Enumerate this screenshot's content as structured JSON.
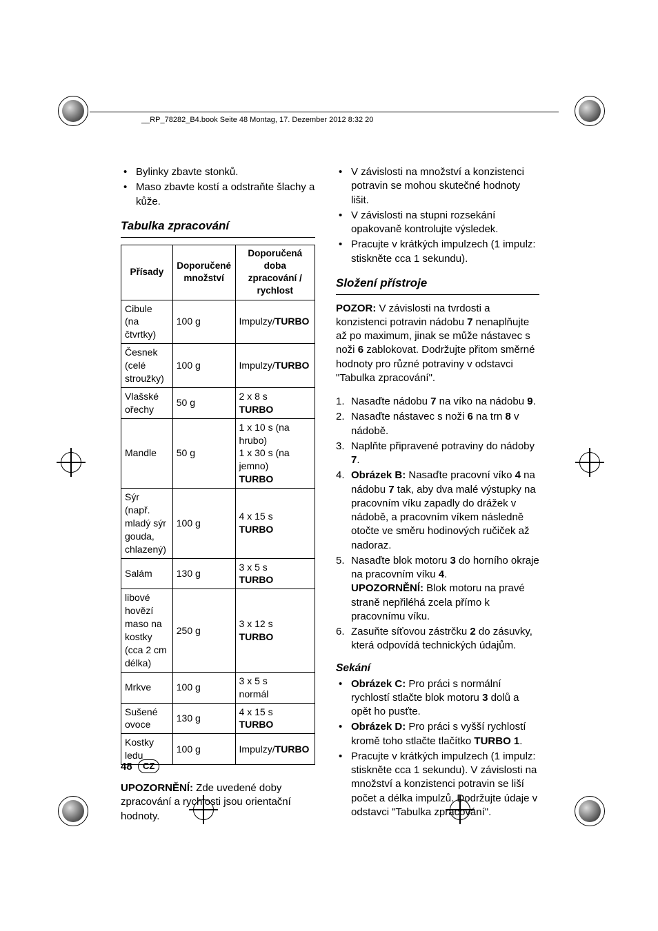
{
  "pageHeader": "__RP_78282_B4.book  Seite 48  Montag, 17. Dezember 2012  8:32 20",
  "left": {
    "bullets_top": [
      "Bylinky zbavte stonků.",
      "Maso zbavte kostí a odstraňte šlachy a kůže."
    ],
    "section_title": "Tabulka zpracování",
    "table": {
      "headers": [
        "Přísady",
        "Doporučené množství",
        "Doporučená doba zpracování / rychlost"
      ],
      "rows": [
        {
          "c1": "Cibule (na čtvrtky)",
          "c2": "100 g",
          "c3_pre": "Impulzy/",
          "c3_strong": "TURBO"
        },
        {
          "c1": "Česnek (celé stroužky)",
          "c2": "100 g",
          "c3_pre": "Impulzy/",
          "c3_strong": "TURBO"
        },
        {
          "c1": "Vlašské ořechy",
          "c2": "50 g",
          "c3_pre": "2 x 8 s",
          "c3_strong": "TURBO",
          "stacked": true
        },
        {
          "c1": "Mandle",
          "c2": "50 g",
          "c3_pre": "1 x 10 s (na hrubo)\n1 x 30 s (na jemno)",
          "c3_strong": "TURBO",
          "stacked": true
        },
        {
          "c1": "Sýr\n(např. mladý sýr gouda, chlazený)",
          "c2": "100 g",
          "c3_pre": "4 x 15 s",
          "c3_strong": "TURBO",
          "stacked": true
        },
        {
          "c1": "Salám",
          "c2": "130 g",
          "c3_pre": "3 x 5 s",
          "c3_strong": "TURBO",
          "stacked": true
        },
        {
          "c1": "libové hovězí maso na kostky (cca 2 cm délka)",
          "c2": "250 g",
          "c3_pre": "3 x 12 s",
          "c3_strong": "TURBO",
          "stacked": true
        },
        {
          "c1": "Mrkve",
          "c2": "100 g",
          "c3_pre": "3 x 5 s\nnormál",
          "c3_strong": "",
          "stacked": true
        },
        {
          "c1": "Sušené ovoce",
          "c2": "130 g",
          "c3_pre": "4 x 15 s",
          "c3_strong": "TURBO",
          "stacked": true
        },
        {
          "c1": "Kostky ledu",
          "c2": "100 g",
          "c3_pre": "Impulzy/",
          "c3_strong": "TURBO"
        }
      ]
    },
    "note_strong": "UPOZORNĚNÍ:",
    "note_rest": " Zde uvedené doby zpracování a rychlosti jsou orientační hodnoty."
  },
  "right": {
    "bullets_top": [
      "V závislosti na množství a konzistenci potravin se mohou skutečné hodnoty lišit.",
      "V závislosti na stupni rozsekání opakovaně kontrolujte výsledek.",
      "Pracujte v krátkých impulzech (1 impulz: stiskněte cca 1 sekundu)."
    ],
    "section_title": "Složení přístroje",
    "pozor": {
      "label": "POZOR:",
      "text_a": " V závislosti na tvrdosti a konzistenci potravin nádobu ",
      "b1": "7",
      "text_b": " nenaplňujte až po maximum, jinak se může nástavec s noži ",
      "b2": "6",
      "text_c": " zablokovat. Dodržujte přitom směrné hodnoty pro různé potraviny v odstavci \"Tabulka zpracování\"."
    },
    "steps": [
      {
        "t1": "Nasaďte nádobu ",
        "b1": "7",
        "t2": " na víko na nádobu ",
        "b2": "9",
        "t3": "."
      },
      {
        "t1": "Nasaďte nástavec s noži ",
        "b1": "6",
        "t2": " na trn ",
        "b2": "8",
        "t3": " v nádobě."
      },
      {
        "t1": "Naplňte připravené potraviny do nádoby ",
        "b1": "7",
        "t2": ".",
        "b2": "",
        "t3": ""
      },
      {
        "pre": "Obrázek B:",
        "t1": " Nasaďte pracovní víko ",
        "b1": "4",
        "t2": " na nádobu ",
        "b2": "7",
        "t3": " tak, aby dva malé výstupky na pracovním víku zapadly do drážek v nádobě, a pracovním víkem následně otočte ve směru hodinových ručiček až nadoraz."
      },
      {
        "t1": "Nasaďte blok motoru ",
        "b1": "3",
        "t2": " do horního okraje na pracovním víku ",
        "b2": "4",
        "t3": ".",
        "post_label": "UPOZORNĚNÍ:",
        "post_text": " Blok motoru na pravé straně nepřiléhá zcela přímo k pracovnímu víku."
      },
      {
        "t1": "Zasuňte síťovou zástrčku ",
        "b1": "2",
        "t2": " do zásuvky, která odpovídá technických údajům.",
        "b2": "",
        "t3": ""
      }
    ],
    "subheading": "Sekání",
    "sekani_bullets": [
      {
        "pre": "Obrázek C:",
        "t1": " Pro práci s normální rychlostí stlačte blok motoru ",
        "b1": "3",
        "t2": " dolů a opět ho pusťte."
      },
      {
        "pre": "Obrázek D:",
        "t1": " Pro práci s vyšší rychlostí kromě toho stlačte tlačítko ",
        "b1": "TURBO 1",
        "t2": "."
      },
      {
        "t1": "Pracujte v krátkých impulzech (1 impulz: stiskněte cca 1 sekundu). V závislosti na množství a konzistenci potravin se liší počet a délka impulzů. Dodržujte údaje v odstavci \"Tabulka zpracování\"."
      }
    ]
  },
  "footer": {
    "page": "48",
    "badge": "CZ"
  }
}
